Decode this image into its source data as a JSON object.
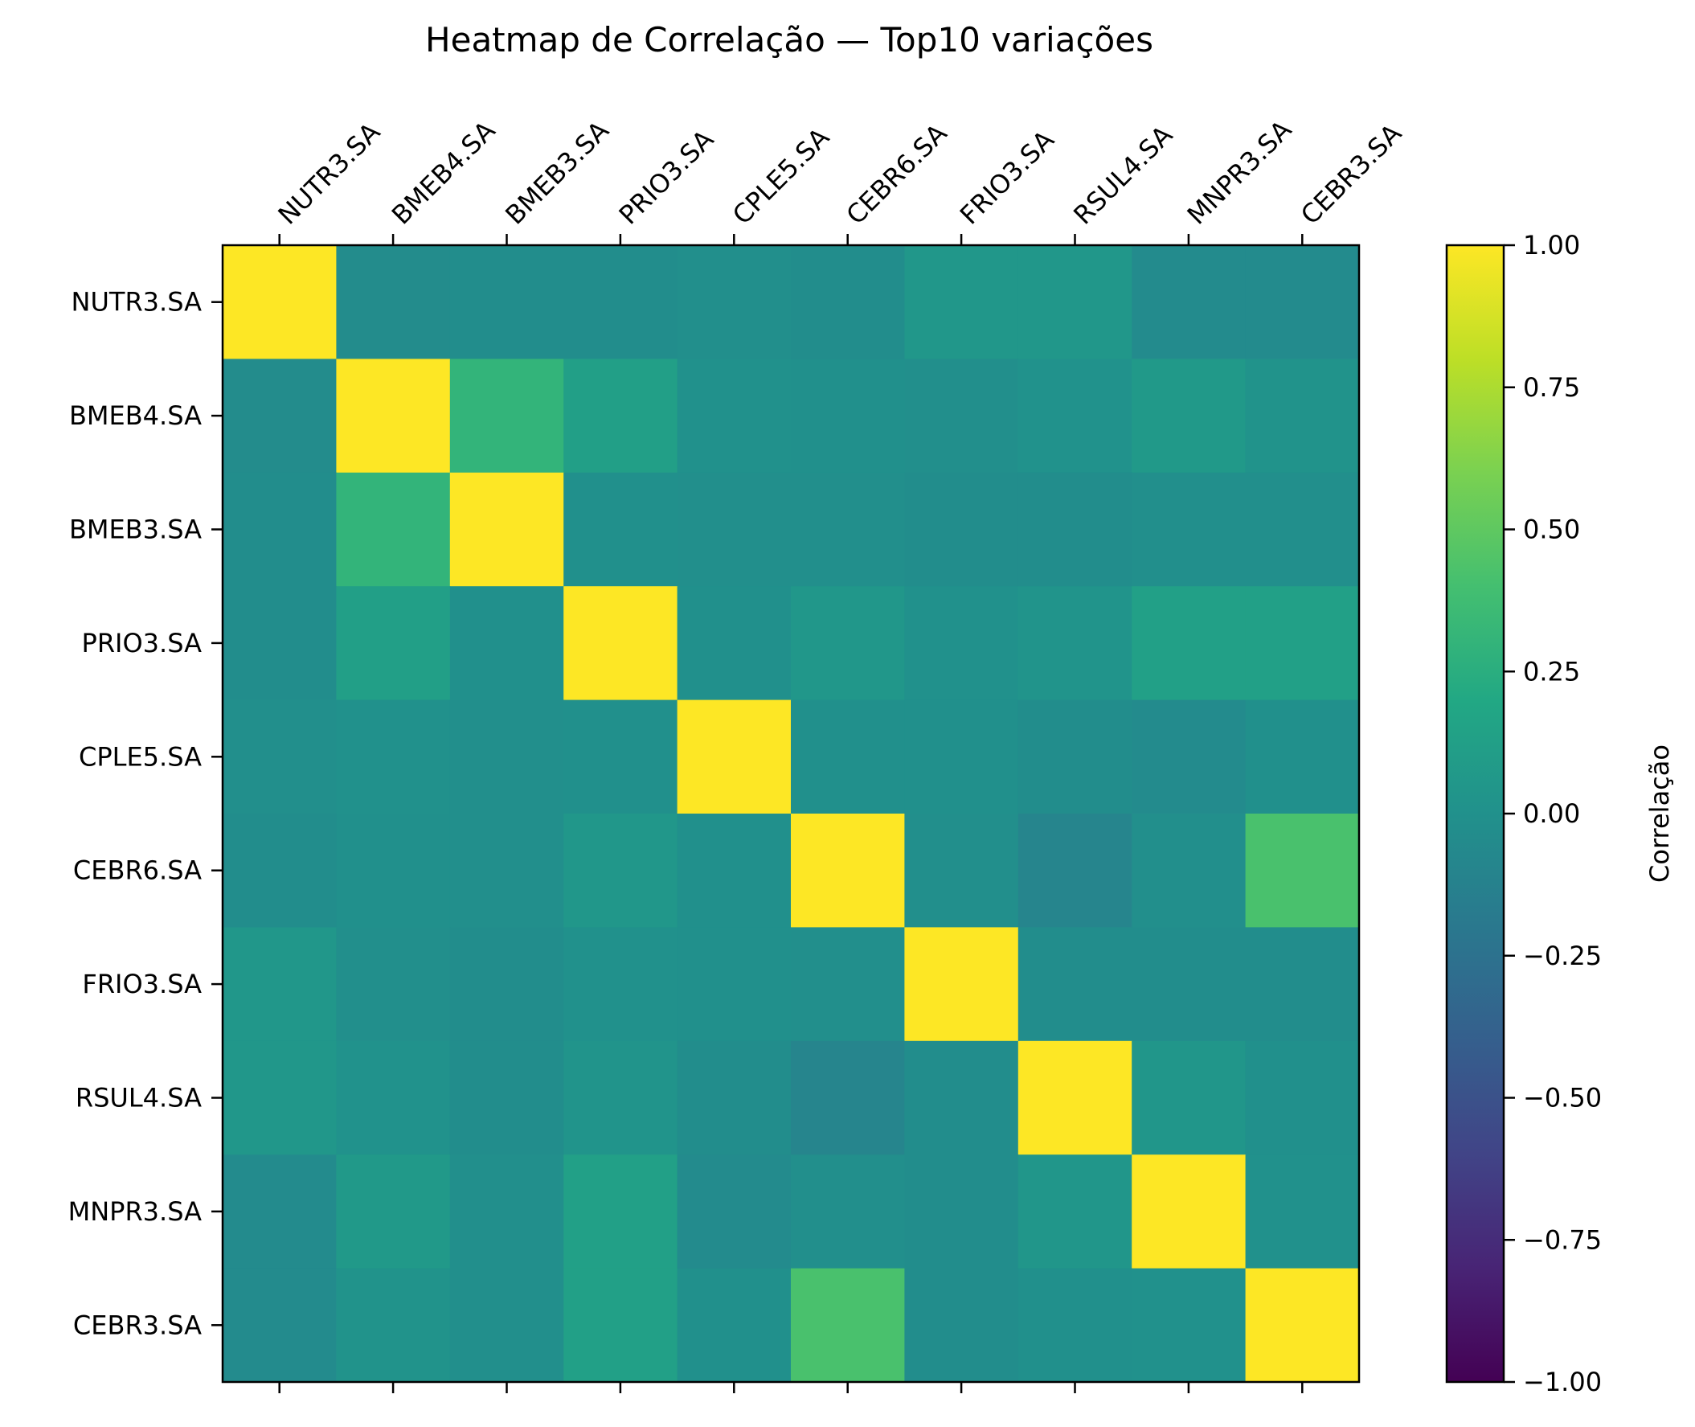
{
  "chart_data": {
    "type": "heatmap",
    "title": "Heatmap de Correlação — Top10 variações",
    "labels": [
      "NUTR3.SA",
      "BMEB4.SA",
      "BMEB3.SA",
      "PRIO3.SA",
      "CPLE5.SA",
      "CEBR6.SA",
      "FRIO3.SA",
      "RSUL4.SA",
      "MNPR3.SA",
      "CEBR3.SA"
    ],
    "matrix": [
      [
        1.0,
        -0.04,
        -0.03,
        -0.03,
        -0.02,
        -0.03,
        0.05,
        0.05,
        -0.05,
        -0.05
      ],
      [
        -0.04,
        1.0,
        0.3,
        0.12,
        0.0,
        -0.01,
        -0.02,
        0.01,
        0.07,
        0.02
      ],
      [
        -0.03,
        0.3,
        1.0,
        -0.01,
        -0.02,
        -0.02,
        -0.03,
        -0.03,
        -0.02,
        -0.02
      ],
      [
        -0.03,
        0.12,
        -0.01,
        1.0,
        -0.01,
        0.05,
        0.0,
        0.03,
        0.13,
        0.13
      ],
      [
        -0.02,
        0.0,
        -0.02,
        -0.01,
        1.0,
        -0.01,
        -0.01,
        -0.03,
        -0.05,
        -0.01
      ],
      [
        -0.03,
        -0.01,
        -0.02,
        0.05,
        -0.01,
        1.0,
        -0.02,
        -0.1,
        -0.02,
        0.42
      ],
      [
        0.05,
        -0.02,
        -0.03,
        0.0,
        -0.01,
        -0.02,
        1.0,
        -0.03,
        -0.03,
        -0.03
      ],
      [
        0.05,
        0.01,
        -0.03,
        0.03,
        -0.03,
        -0.1,
        -0.03,
        1.0,
        0.04,
        -0.01
      ],
      [
        -0.05,
        0.07,
        -0.02,
        0.13,
        -0.05,
        -0.02,
        -0.03,
        0.04,
        1.0,
        0.0
      ],
      [
        -0.05,
        0.02,
        -0.02,
        0.13,
        -0.01,
        0.42,
        -0.03,
        -0.01,
        0.0,
        1.0
      ]
    ],
    "colorbar": {
      "label": "Correlação",
      "min": -1.0,
      "max": 1.0,
      "ticks": [
        1.0,
        0.75,
        0.5,
        0.25,
        0.0,
        -0.25,
        -0.5,
        -0.75,
        -1.0
      ],
      "tick_labels": [
        "1.00",
        "0.75",
        "0.50",
        "0.25",
        "0.00",
        "−0.25",
        "−0.50",
        "−0.75",
        "−1.00"
      ],
      "colormap": "viridis"
    },
    "grid": false
  }
}
